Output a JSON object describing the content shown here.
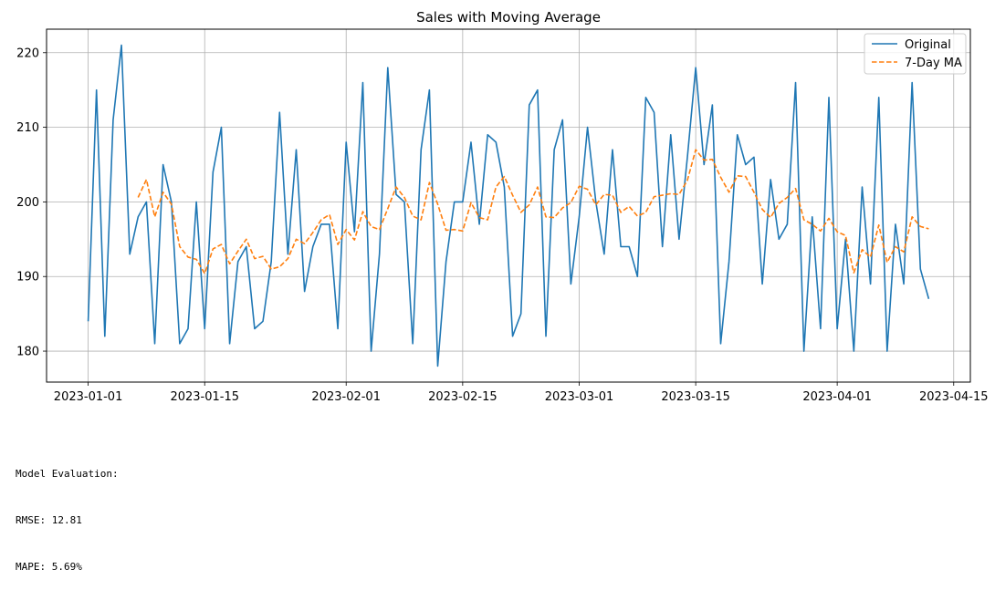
{
  "chart_data": {
    "type": "line",
    "title": "Sales with Moving Average",
    "xlabel": "",
    "ylabel": "",
    "x_start": "2023-01-01",
    "x": [
      "2023-01-01",
      "2023-01-02",
      "2023-01-03",
      "2023-01-04",
      "2023-01-05",
      "2023-01-06",
      "2023-01-07",
      "2023-01-08",
      "2023-01-09",
      "2023-01-10",
      "2023-01-11",
      "2023-01-12",
      "2023-01-13",
      "2023-01-14",
      "2023-01-15",
      "2023-01-16",
      "2023-01-17",
      "2023-01-18",
      "2023-01-19",
      "2023-01-20",
      "2023-01-21",
      "2023-01-22",
      "2023-01-23",
      "2023-01-24",
      "2023-01-25",
      "2023-01-26",
      "2023-01-27",
      "2023-01-28",
      "2023-01-29",
      "2023-01-30",
      "2023-01-31",
      "2023-02-01",
      "2023-02-02",
      "2023-02-03",
      "2023-02-04",
      "2023-02-05",
      "2023-02-06",
      "2023-02-07",
      "2023-02-08",
      "2023-02-09",
      "2023-02-10",
      "2023-02-11",
      "2023-02-12",
      "2023-02-13",
      "2023-02-14",
      "2023-02-15",
      "2023-02-16",
      "2023-02-17",
      "2023-02-18",
      "2023-02-19",
      "2023-02-20",
      "2023-02-21",
      "2023-02-22",
      "2023-02-23",
      "2023-02-24",
      "2023-02-25",
      "2023-02-26",
      "2023-02-27",
      "2023-02-28",
      "2023-03-01",
      "2023-03-02",
      "2023-03-03",
      "2023-03-04",
      "2023-03-05",
      "2023-03-06",
      "2023-03-07",
      "2023-03-08",
      "2023-03-09",
      "2023-03-10",
      "2023-03-11",
      "2023-03-12",
      "2023-03-13",
      "2023-03-14",
      "2023-03-15",
      "2023-03-16",
      "2023-03-17",
      "2023-03-18",
      "2023-03-19",
      "2023-03-20",
      "2023-03-21",
      "2023-03-22",
      "2023-03-23",
      "2023-03-24",
      "2023-03-25",
      "2023-03-26",
      "2023-03-27",
      "2023-03-28",
      "2023-03-29",
      "2023-03-30",
      "2023-03-31",
      "2023-04-01",
      "2023-04-02",
      "2023-04-03",
      "2023-04-04",
      "2023-04-05",
      "2023-04-06",
      "2023-04-07",
      "2023-04-08",
      "2023-04-09",
      "2023-04-10",
      "2023-04-11",
      "2023-04-12"
    ],
    "series": [
      {
        "name": "Original",
        "color": "#1f77b4",
        "style": "solid",
        "values": [
          184,
          215,
          182,
          211,
          221,
          193,
          198,
          200,
          181,
          205,
          200,
          181,
          183,
          200,
          183,
          204,
          210,
          181,
          192,
          194,
          183,
          184,
          192,
          212,
          193,
          207,
          188,
          194,
          197,
          197,
          183,
          208,
          196,
          216,
          180,
          193,
          218,
          201,
          200,
          181,
          207,
          215,
          178,
          192,
          200,
          200,
          208,
          197,
          209,
          208,
          202,
          182,
          185,
          213,
          215,
          182,
          207,
          211,
          189,
          198,
          210,
          200,
          193,
          207,
          194,
          194,
          190,
          214,
          212,
          194,
          209,
          195,
          206,
          218,
          205,
          213,
          181,
          192,
          209,
          205,
          206,
          189,
          203,
          195,
          197,
          216,
          180,
          198,
          183,
          214,
          183,
          195,
          180,
          202,
          189,
          214,
          180,
          197,
          189,
          216,
          191,
          187
        ]
      },
      {
        "name": "7-Day MA",
        "color": "#ff7f0e",
        "style": "dashed",
        "values": [
          null,
          null,
          null,
          null,
          null,
          null,
          200.6,
          203.0,
          198.0,
          201.3,
          199.7,
          194.0,
          192.6,
          192.3,
          190.4,
          193.7,
          194.3,
          191.7,
          193.4,
          195.0,
          192.4,
          192.7,
          191.0,
          191.3,
          192.4,
          195.0,
          194.4,
          195.9,
          197.6,
          198.3,
          194.3,
          196.3,
          194.9,
          198.7,
          196.7,
          196.3,
          199.1,
          202.0,
          200.6,
          198.1,
          197.6,
          202.6,
          199.7,
          196.2,
          196.3,
          196.1,
          199.9,
          197.9,
          197.6,
          202.0,
          203.4,
          200.9,
          198.6,
          199.6,
          202.0,
          198.0,
          197.9,
          199.2,
          199.9,
          202.1,
          201.7,
          199.6,
          201.0,
          200.9,
          198.6,
          199.4,
          198.1,
          198.6,
          200.7,
          200.9,
          201.1,
          201.0,
          202.9,
          207.0,
          205.6,
          205.7,
          203.3,
          201.3,
          203.5,
          203.4,
          201.3,
          199.0,
          197.9,
          199.8,
          200.6,
          201.8,
          197.6,
          197.0,
          196.1,
          197.8,
          196.0,
          195.5,
          190.5,
          193.6,
          192.6,
          196.9,
          191.9,
          194.0,
          193.3,
          198.0,
          196.7,
          196.4
        ]
      }
    ],
    "xlim": [
      "2022-12-27",
      "2023-04-17"
    ],
    "ylim": [
      175.85,
      223.15
    ],
    "yticks": [
      180,
      190,
      200,
      210,
      220
    ],
    "xticks": [
      "2023-01-01",
      "2023-01-15",
      "2023-02-01",
      "2023-02-15",
      "2023-03-01",
      "2023-03-15",
      "2023-04-01",
      "2023-04-15"
    ],
    "grid": true,
    "legend": "top-right"
  },
  "evaluation": {
    "heading": "Model Evaluation:",
    "rmse": "RMSE: 12.81",
    "mape": "MAPE: 5.69%"
  }
}
